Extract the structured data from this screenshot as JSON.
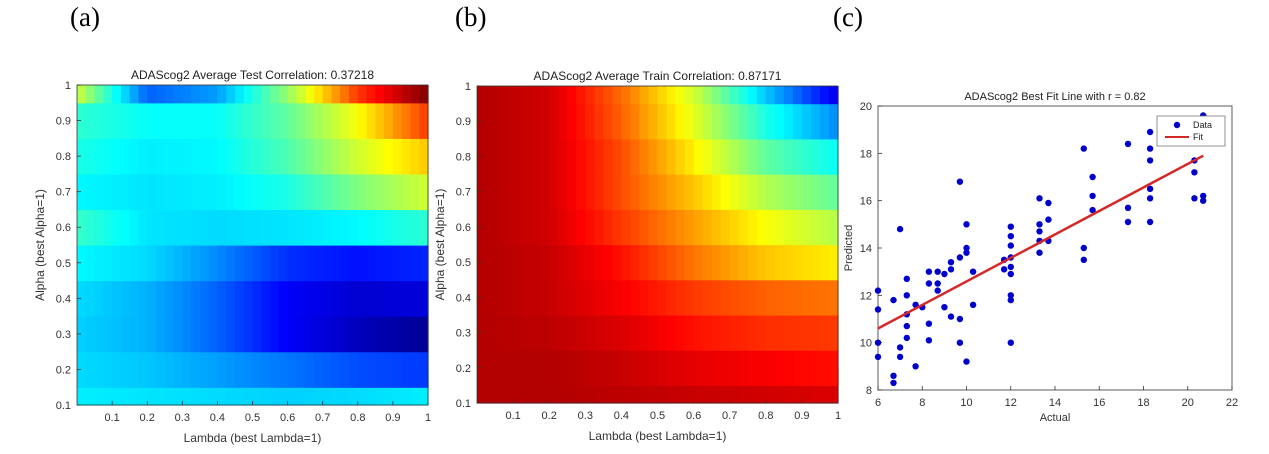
{
  "panel_labels": [
    "(a)",
    "(b)",
    "(c)"
  ],
  "chart_data": [
    {
      "type": "heatmap",
      "title": "ADAScog2 Average Test Correlation: 0.37218",
      "xlabel": "Lambda (best Lambda=1)",
      "ylabel": "Alpha (best Alpha=1)",
      "xlim": [
        0,
        1
      ],
      "ylim": [
        0.1,
        1
      ],
      "xticks": [
        "0.1",
        "0.2",
        "0.3",
        "0.4",
        "0.5",
        "0.6",
        "0.7",
        "0.8",
        "0.9",
        "1"
      ],
      "yticks": [
        "0.1",
        "0.2",
        "0.3",
        "0.4",
        "0.5",
        "0.6",
        "0.7",
        "0.8",
        "0.9",
        "1"
      ],
      "colormap": "jet",
      "rows_alpha": [
        0.15,
        0.2,
        0.3,
        0.4,
        0.5,
        0.6,
        0.7,
        0.8,
        0.9,
        1.0
      ],
      "lambda_knots": [
        0,
        0.2,
        0.4,
        0.6,
        0.8,
        1.0
      ],
      "values_norm": [
        [
          0.36,
          0.35,
          0.34,
          0.33,
          0.34,
          0.36
        ],
        [
          0.34,
          0.32,
          0.28,
          0.24,
          0.2,
          0.18
        ],
        [
          0.33,
          0.3,
          0.22,
          0.12,
          0.06,
          0.02
        ],
        [
          0.34,
          0.3,
          0.22,
          0.12,
          0.08,
          0.09
        ],
        [
          0.37,
          0.34,
          0.26,
          0.17,
          0.14,
          0.16
        ],
        [
          0.43,
          0.35,
          0.34,
          0.35,
          0.37,
          0.42
        ],
        [
          0.37,
          0.35,
          0.36,
          0.4,
          0.5,
          0.58
        ],
        [
          0.4,
          0.36,
          0.37,
          0.45,
          0.58,
          0.68
        ],
        [
          0.42,
          0.38,
          0.38,
          0.47,
          0.62,
          0.82
        ],
        [
          0.58,
          0.22,
          0.28,
          0.52,
          0.82,
          1.0
        ]
      ]
    },
    {
      "type": "heatmap",
      "title": "ADAScog2 Average Train Correlation: 0.87171",
      "xlabel": "Lambda (best Lambda=1)",
      "ylabel": "Alpha (best Alpha=1)",
      "xlim": [
        0,
        1
      ],
      "ylim": [
        0.1,
        1
      ],
      "xticks": [
        "0.1",
        "0.2",
        "0.3",
        "0.4",
        "0.5",
        "0.6",
        "0.7",
        "0.8",
        "0.9",
        "1"
      ],
      "yticks": [
        "0.1",
        "0.2",
        "0.3",
        "0.4",
        "0.5",
        "0.6",
        "0.7",
        "0.8",
        "0.9",
        "1"
      ],
      "colormap": "jet",
      "rows_alpha": [
        0.15,
        0.2,
        0.3,
        0.4,
        0.5,
        0.6,
        0.7,
        0.8,
        0.9,
        1.0
      ],
      "lambda_knots": [
        0,
        0.2,
        0.4,
        0.6,
        0.8,
        1.0
      ],
      "values_norm": [
        [
          0.95,
          0.95,
          0.94,
          0.93,
          0.92,
          0.91
        ],
        [
          0.95,
          0.95,
          0.93,
          0.9,
          0.88,
          0.86
        ],
        [
          0.95,
          0.94,
          0.91,
          0.86,
          0.83,
          0.82
        ],
        [
          0.95,
          0.93,
          0.88,
          0.82,
          0.78,
          0.76
        ],
        [
          0.95,
          0.93,
          0.86,
          0.76,
          0.68,
          0.64
        ],
        [
          0.95,
          0.92,
          0.82,
          0.72,
          0.62,
          0.55
        ],
        [
          0.95,
          0.92,
          0.8,
          0.68,
          0.55,
          0.47
        ],
        [
          0.95,
          0.92,
          0.8,
          0.64,
          0.47,
          0.38
        ],
        [
          0.95,
          0.92,
          0.78,
          0.6,
          0.4,
          0.26
        ],
        [
          0.95,
          0.92,
          0.77,
          0.58,
          0.32,
          0.1
        ]
      ]
    },
    {
      "type": "scatter",
      "title": "ADAScog2 Best Fit Line with r = 0.82",
      "xlabel": "Actual",
      "ylabel": "Predicted",
      "xlim": [
        6,
        22
      ],
      "ylim": [
        8,
        20
      ],
      "xticks": [
        6,
        8,
        10,
        12,
        14,
        16,
        18,
        20,
        22
      ],
      "yticks": [
        8,
        10,
        12,
        14,
        16,
        18,
        20
      ],
      "legend": {
        "placement": "top-right",
        "entries": [
          "Data",
          "Fit"
        ]
      },
      "colors": {
        "data": "#0000cc",
        "fit": "#d62728"
      },
      "fit_line": {
        "x": [
          6,
          20.7
        ],
        "y": [
          10.6,
          17.9
        ]
      },
      "series": [
        {
          "name": "Data",
          "points": [
            [
              6.0,
              12.2
            ],
            [
              6.0,
              11.4
            ],
            [
              6.0,
              10.0
            ],
            [
              6.0,
              9.4
            ],
            [
              6.7,
              8.3
            ],
            [
              6.7,
              8.6
            ],
            [
              6.7,
              11.8
            ],
            [
              7.0,
              14.8
            ],
            [
              7.0,
              9.8
            ],
            [
              7.0,
              9.4
            ],
            [
              7.3,
              12.7
            ],
            [
              7.3,
              12.0
            ],
            [
              7.3,
              11.2
            ],
            [
              7.3,
              10.7
            ],
            [
              7.3,
              10.2
            ],
            [
              7.7,
              11.6
            ],
            [
              7.7,
              9.0
            ],
            [
              8.0,
              11.5
            ],
            [
              8.3,
              13.0
            ],
            [
              8.3,
              12.5
            ],
            [
              8.3,
              10.8
            ],
            [
              8.3,
              10.1
            ],
            [
              8.7,
              13.0
            ],
            [
              8.7,
              12.5
            ],
            [
              8.7,
              12.2
            ],
            [
              9.0,
              12.9
            ],
            [
              9.0,
              11.5
            ],
            [
              9.3,
              13.4
            ],
            [
              9.3,
              13.1
            ],
            [
              9.3,
              11.1
            ],
            [
              9.7,
              16.8
            ],
            [
              9.7,
              13.6
            ],
            [
              9.7,
              11.0
            ],
            [
              9.7,
              10.0
            ],
            [
              10.0,
              15.0
            ],
            [
              10.0,
              14.0
            ],
            [
              10.0,
              13.8
            ],
            [
              10.0,
              9.2
            ],
            [
              10.3,
              13.0
            ],
            [
              10.3,
              11.6
            ],
            [
              11.7,
              13.5
            ],
            [
              11.7,
              13.1
            ],
            [
              12.0,
              14.9
            ],
            [
              12.0,
              14.5
            ],
            [
              12.0,
              14.1
            ],
            [
              12.0,
              13.6
            ],
            [
              12.0,
              13.2
            ],
            [
              12.0,
              12.9
            ],
            [
              12.0,
              12.0
            ],
            [
              12.0,
              11.8
            ],
            [
              12.0,
              10.0
            ],
            [
              13.3,
              16.1
            ],
            [
              13.3,
              15.0
            ],
            [
              13.3,
              14.7
            ],
            [
              13.3,
              14.3
            ],
            [
              13.3,
              13.8
            ],
            [
              13.7,
              15.9
            ],
            [
              13.7,
              15.2
            ],
            [
              13.7,
              14.3
            ],
            [
              15.3,
              18.2
            ],
            [
              15.3,
              14.0
            ],
            [
              15.3,
              13.5
            ],
            [
              15.7,
              17.0
            ],
            [
              15.7,
              16.2
            ],
            [
              15.7,
              15.6
            ],
            [
              17.3,
              18.4
            ],
            [
              17.3,
              15.7
            ],
            [
              17.3,
              15.1
            ],
            [
              18.3,
              18.9
            ],
            [
              18.3,
              18.2
            ],
            [
              18.3,
              17.7
            ],
            [
              18.3,
              16.5
            ],
            [
              18.3,
              16.1
            ],
            [
              18.3,
              15.1
            ],
            [
              20.3,
              17.7
            ],
            [
              20.3,
              17.2
            ],
            [
              20.3,
              16.1
            ],
            [
              20.7,
              19.6
            ],
            [
              20.7,
              16.2
            ],
            [
              20.7,
              16.0
            ]
          ]
        }
      ]
    }
  ]
}
